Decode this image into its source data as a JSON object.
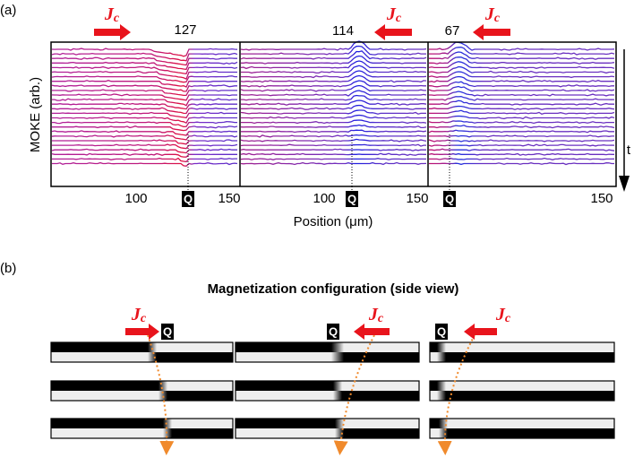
{
  "current_symbol": "J",
  "current_subscript": "c",
  "marker": "Q",
  "panel_a": {
    "label": "(a)",
    "y_label": "MOKE (arb.)",
    "x_label": "Position (μm)",
    "time_label": "t",
    "plots": [
      {
        "count": 127,
        "ticks": [
          100,
          150
        ]
      },
      {
        "count": 114,
        "ticks": [
          100,
          150
        ]
      },
      {
        "count": 67,
        "ticks": [
          150
        ]
      }
    ]
  },
  "panel_b": {
    "label": "(b)",
    "title": "Magnetization configuration (side view)"
  }
}
